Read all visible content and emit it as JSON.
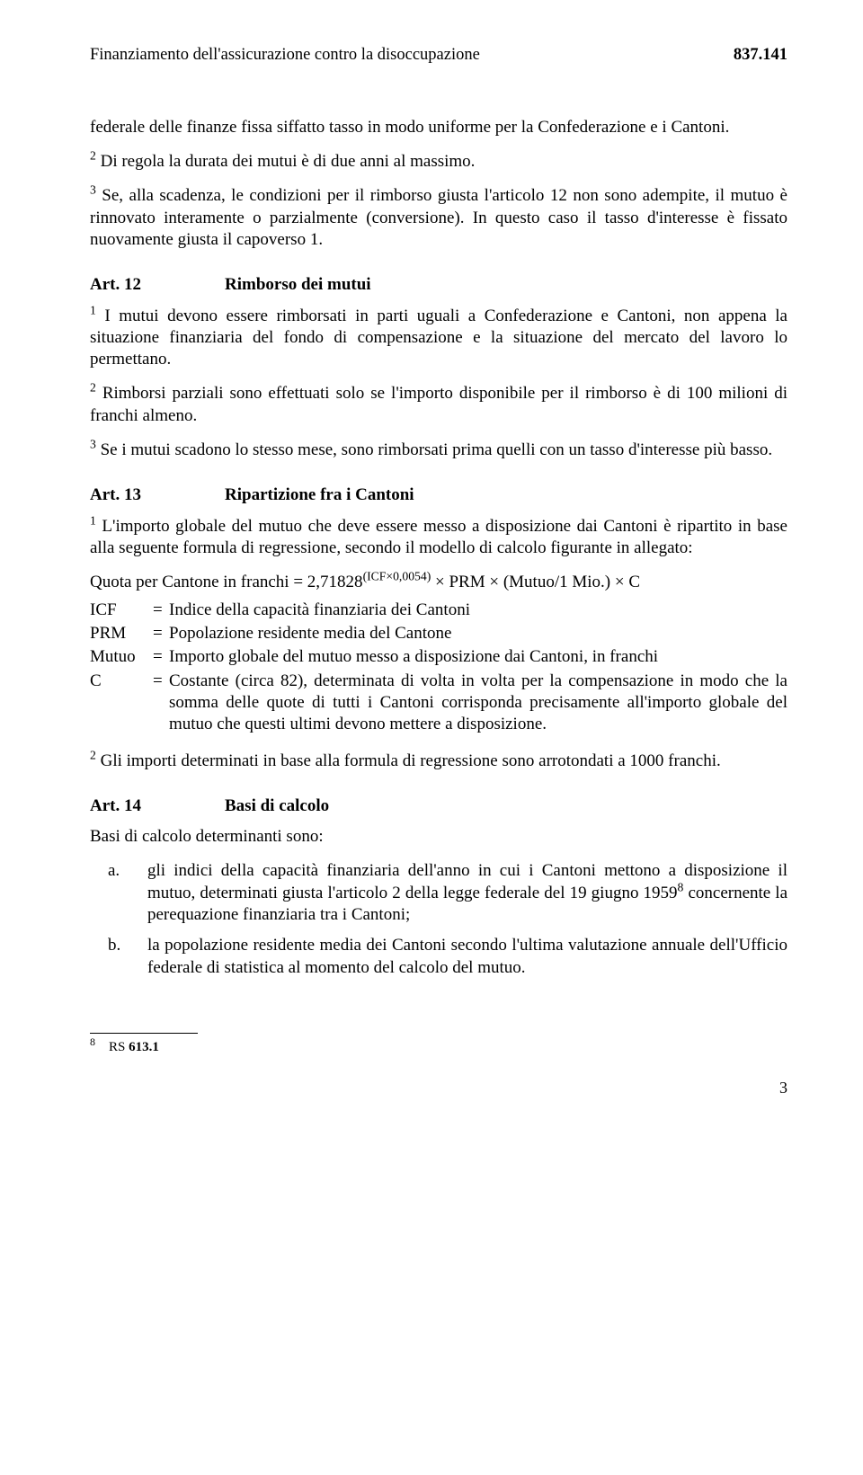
{
  "header": {
    "title": "Finanziamento dell'assicurazione contro la disoccupazione",
    "code": "837.141"
  },
  "intro": {
    "p1": "federale delle finanze fissa siffatto tasso in modo uniforme per la Confederazione e i Cantoni.",
    "p2": " Di regola la durata dei mutui è di due anni al massimo.",
    "p3": " Se, alla scadenza, le condizioni per il rimborso giusta l'articolo 12 non sono adempite, il mutuo è rinnovato interamente o parzialmente (conversione). In questo caso il tasso d'interesse è fissato nuovamente giusta il capoverso 1."
  },
  "art12": {
    "num": "Art. 12",
    "title": "Rimborso dei mutui",
    "p1": " I mutui devono essere rimborsati in parti uguali a Confederazione e Cantoni, non appena la situazione finanziaria del fondo di compensazione e la situazione del mercato del lavoro lo permettano.",
    "p2": " Rimborsi parziali sono effettuati solo se l'importo disponibile per il rimborso è di 100 milioni di franchi almeno.",
    "p3": " Se i mutui scadono lo stesso mese, sono rimborsati prima quelli con un tasso d'interesse più basso."
  },
  "art13": {
    "num": "Art. 13",
    "title": "Ripartizione fra i Cantoni",
    "p1": " L'importo globale del mutuo che deve essere messo a disposizione dai Cantoni è ripartito in base alla seguente formula di regressione, secondo il modello di calcolo figurante in allegato:",
    "formula_lhs": "Quota per Cantone in franchi = 2,71828",
    "formula_exp": "(ICF×0,0054)",
    "formula_rhs": " × PRM × (Mutuo/1 Mio.) × C",
    "defs": {
      "icf_k": "ICF",
      "icf_v": "Indice della capacità finanziaria dei Cantoni",
      "prm_k": "PRM",
      "prm_v": "Popolazione residente media del Cantone",
      "mutuo_k": "Mutuo",
      "mutuo_v": "Importo globale del mutuo messo a disposizione dai Cantoni, in franchi",
      "c_k": "C",
      "c_v": "Costante (circa 82), determinata di volta in volta per la compensazione in modo che la somma delle quote di tutti i Cantoni corrisponda precisamente all'importo globale del mutuo che questi ultimi devono mettere a disposizione."
    },
    "p2": " Gli importi determinati in base alla formula di regressione sono arrotondati a 1000 franchi."
  },
  "art14": {
    "num": "Art. 14",
    "title": "Basi di calcolo",
    "intro": "Basi di calcolo determinanti sono:",
    "a_letter": "a.",
    "a_body_1": "gli indici della capacità finanziaria dell'anno in cui i Cantoni mettono a disposizione il mutuo, determinati giusta l'articolo 2 della legge federale del 19 giugno 1959",
    "a_body_2": " concernente la perequazione finanziaria tra i Cantoni;",
    "b_letter": "b.",
    "b_body": "la popolazione residente media dei Cantoni secondo l'ultima valutazione annuale dell'Ufficio federale di statistica al momento del calcolo del mutuo."
  },
  "footnote": {
    "num": "8",
    "text": "RS ",
    "ref": "613.1"
  },
  "page_number": "3"
}
